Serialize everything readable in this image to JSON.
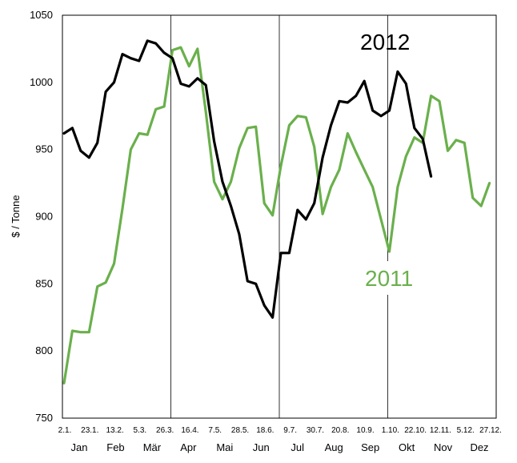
{
  "chart_data": {
    "type": "line",
    "ylabel": "$ / Tonne",
    "ylim": [
      750,
      1050
    ],
    "yticks": [
      750,
      800,
      850,
      900,
      950,
      1000,
      1050
    ],
    "grid": "vertical-quarters",
    "x_tick_labels": [
      "2.1.",
      "23.1.",
      "13.2.",
      "5.3.",
      "26.3.",
      "16.4.",
      "7.5.",
      "28.5.",
      "18.6.",
      "9.7.",
      "30.7.",
      "20.8.",
      "10.9.",
      "1.10.",
      "22.10.",
      "12.11.",
      "5.12.",
      "27.12."
    ],
    "months": [
      "Jan",
      "Feb",
      "Mär",
      "Apr",
      "Mai",
      "Jun",
      "Jul",
      "Aug",
      "Sep",
      "Okt",
      "Nov",
      "Dez"
    ],
    "series": [
      {
        "name": "2012",
        "color": "#000000",
        "values": [
          962,
          966,
          949,
          944,
          955,
          993,
          1000,
          1021,
          1018,
          1016,
          1031,
          1029,
          1022,
          1018,
          999,
          997,
          1003,
          998,
          956,
          926,
          908,
          887,
          852,
          850,
          834,
          825,
          873,
          873,
          905,
          898,
          910,
          944,
          968,
          986,
          985,
          990,
          1001,
          979,
          975,
          979,
          1008,
          999,
          966,
          958,
          930
        ]
      },
      {
        "name": "2011",
        "color": "#6ab04c",
        "values": [
          776,
          815,
          814,
          814,
          848,
          851,
          865,
          906,
          950,
          962,
          961,
          980,
          982,
          1024,
          1026,
          1012,
          1025,
          978,
          926,
          913,
          926,
          951,
          966,
          967,
          910,
          901,
          938,
          968,
          975,
          974,
          952,
          902,
          922,
          935,
          962,
          948,
          935,
          922,
          898,
          874,
          922,
          945,
          959,
          955,
          990,
          986,
          949,
          957,
          955,
          914,
          908,
          925
        ]
      }
    ],
    "annotations": [
      "2012",
      "2011"
    ]
  }
}
